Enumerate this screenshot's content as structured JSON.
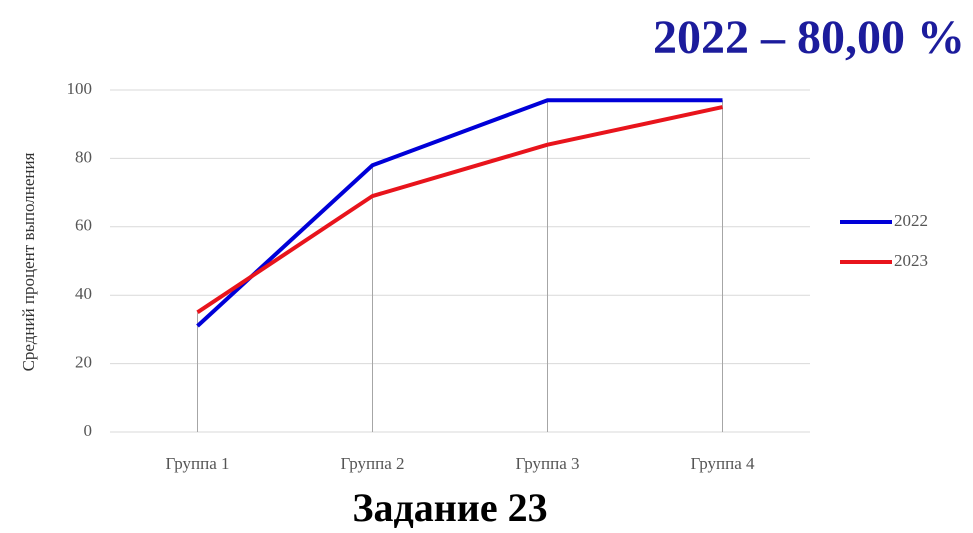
{
  "chart_data": {
    "type": "line",
    "title": "2022 – 80,00 %",
    "caption": "Задание 23",
    "y_label": "Средний процент выполнения",
    "categories": [
      "Группа 1",
      "Группа 2",
      "Группа 3",
      "Группа 4"
    ],
    "series": [
      {
        "name": "2022",
        "color": "#0000d8",
        "values": [
          31,
          78,
          97,
          97
        ]
      },
      {
        "name": "2023",
        "color": "#e8141c",
        "values": [
          35,
          69,
          84,
          95
        ]
      }
    ],
    "ylim": [
      0,
      100
    ],
    "yticks": [
      0,
      20,
      40,
      60,
      80,
      100
    ],
    "grid": true,
    "legend": "right"
  }
}
